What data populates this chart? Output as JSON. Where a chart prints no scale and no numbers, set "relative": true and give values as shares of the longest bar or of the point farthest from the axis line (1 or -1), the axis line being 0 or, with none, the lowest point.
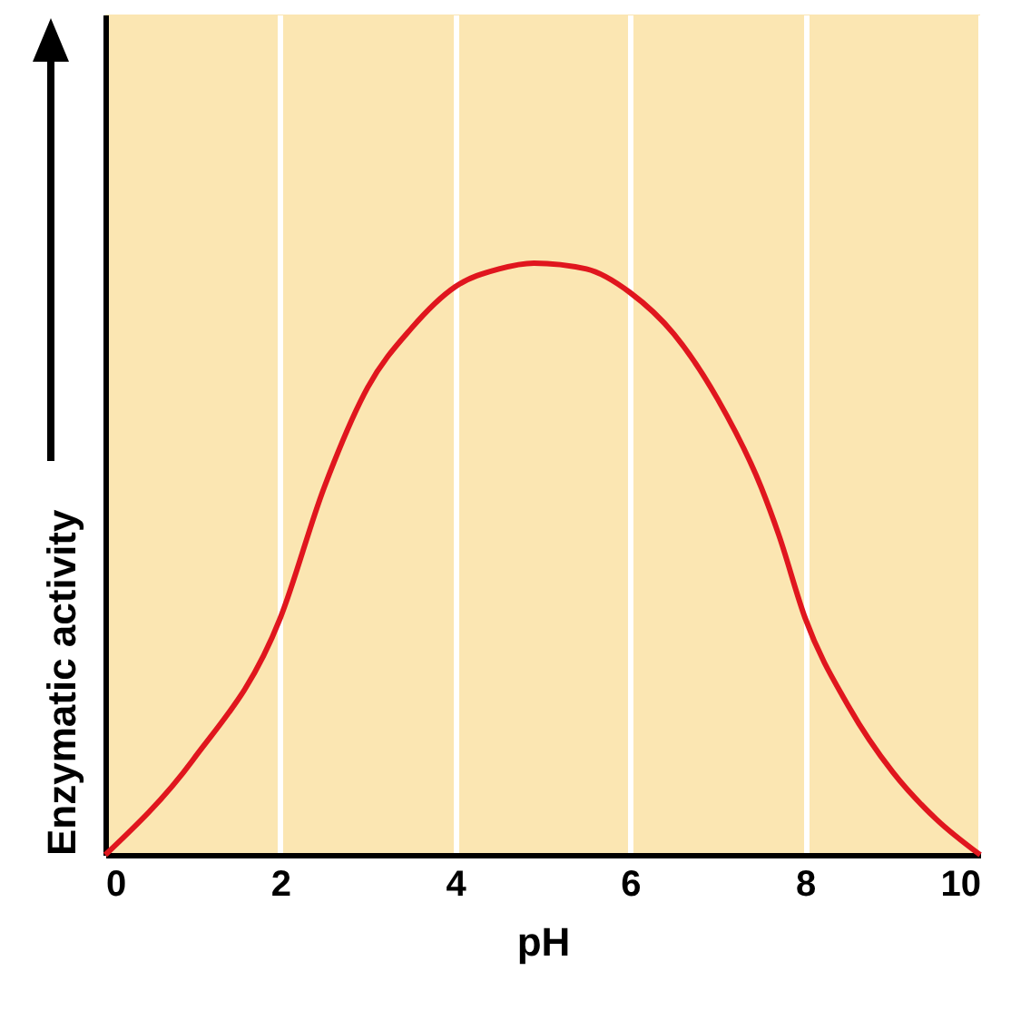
{
  "chart_data": {
    "type": "line",
    "xlabel": "pH",
    "ylabel": "Enzymatic activity",
    "relative": true,
    "x": [
      0,
      1,
      2,
      2.5,
      3,
      3.5,
      4,
      4.5,
      4.9,
      5.5,
      6,
      6.5,
      7,
      7.5,
      7.7,
      8,
      8.5,
      9,
      9.5,
      10
    ],
    "series": [
      {
        "color": "#e0161e",
        "values": [
          0,
          0.16,
          0.4,
          0.62,
          0.79,
          0.89,
          0.96,
          0.99,
          1,
          0.99,
          0.95,
          0.88,
          0.77,
          0.62,
          0.54,
          0.4,
          0.25,
          0.14,
          0.06,
          0
        ]
      }
    ],
    "xlim": [
      0,
      10
    ],
    "xticks": [
      0,
      2,
      4,
      6,
      8,
      10
    ],
    "grid": "x",
    "marker": "none",
    "line_style": "solid"
  }
}
